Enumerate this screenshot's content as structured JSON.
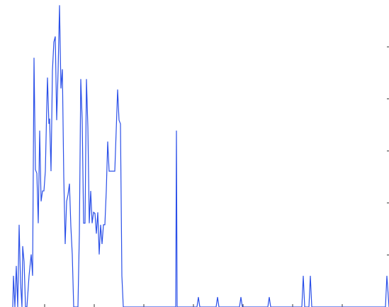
{
  "chart_data": {
    "type": "line",
    "color": "#2b50e8",
    "xlim": [
      7,
      556
    ],
    "xticks": [
      70,
      140,
      210,
      280,
      350,
      420,
      490
    ],
    "ylim": [
      0,
      5.9
    ],
    "yticks": [
      1,
      2,
      3,
      4,
      5
    ],
    "x": [
      25,
      26,
      28,
      30,
      32,
      34,
      36,
      38,
      39,
      41,
      43,
      45,
      48,
      51,
      53,
      55,
      57,
      59,
      61,
      63,
      65,
      67,
      69,
      71,
      73,
      74,
      76,
      77,
      79,
      81,
      83,
      85,
      87,
      89,
      91,
      93,
      95,
      97,
      99,
      101,
      103,
      105,
      107,
      109,
      111,
      113,
      117,
      119,
      121,
      123,
      125,
      127,
      129,
      131,
      133,
      135,
      137,
      139,
      141,
      143,
      145,
      147,
      149,
      151,
      153,
      155,
      157,
      159,
      161,
      163,
      165,
      167,
      169,
      171,
      173,
      175,
      177,
      179,
      181,
      255,
      256,
      257,
      285,
      287,
      289,
      312,
      314,
      316,
      345,
      347,
      349,
      385,
      387,
      389,
      433,
      435,
      437,
      443,
      445,
      447,
      551,
      553,
      556
    ],
    "values": [
      0,
      0.6,
      0,
      0.79,
      0,
      1.58,
      0.46,
      0,
      1.17,
      0.87,
      0,
      0,
      0.6,
      1.01,
      0.6,
      4.79,
      2.64,
      2.57,
      1.61,
      3.39,
      2.03,
      2.23,
      2.23,
      2.61,
      3.86,
      4.41,
      3.52,
      3.62,
      2.61,
      4.54,
      5.09,
      5.2,
      3.59,
      4.54,
      5.8,
      4.2,
      4.57,
      2.5,
      1.21,
      2.03,
      2.16,
      2.37,
      1.55,
      1.01,
      0,
      0,
      0,
      1.41,
      4.38,
      3.59,
      1.61,
      1.61,
      4.38,
      3.46,
      1.61,
      2.23,
      1.61,
      1.82,
      1.8,
      1.41,
      1.82,
      1.01,
      1.58,
      1.21,
      1.58,
      1.58,
      2.23,
      3.18,
      2.61,
      2.61,
      2.61,
      2.61,
      2.61,
      3.39,
      4.18,
      3.59,
      3.52,
      0.6,
      0,
      0,
      3.39,
      0,
      0,
      0.19,
      0,
      0,
      0.19,
      0,
      0,
      0.19,
      0,
      0,
      0.19,
      0,
      0,
      0.6,
      0,
      0,
      0.6,
      0,
      0,
      0.6,
      0
    ]
  }
}
